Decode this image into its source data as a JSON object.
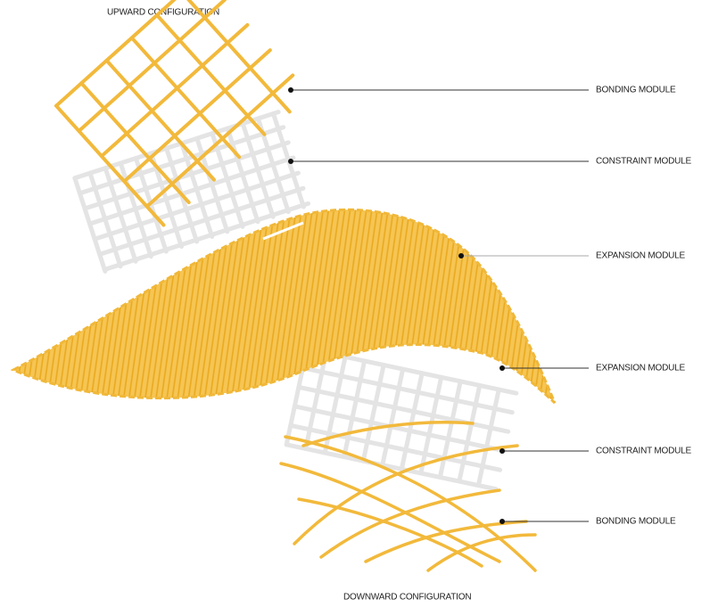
{
  "header": {
    "title": "UPWARD CONFIGURATION"
  },
  "footer": {
    "title": "DOWNWARD CONFIGURATION"
  },
  "labels": [
    "BONDING MODULE",
    "CONSTRAINT MODULE",
    "EXPANSION MODULE",
    "EXPANSION MODULE",
    "CONSTRAINT MODULE",
    "BONDING MODULE"
  ]
}
